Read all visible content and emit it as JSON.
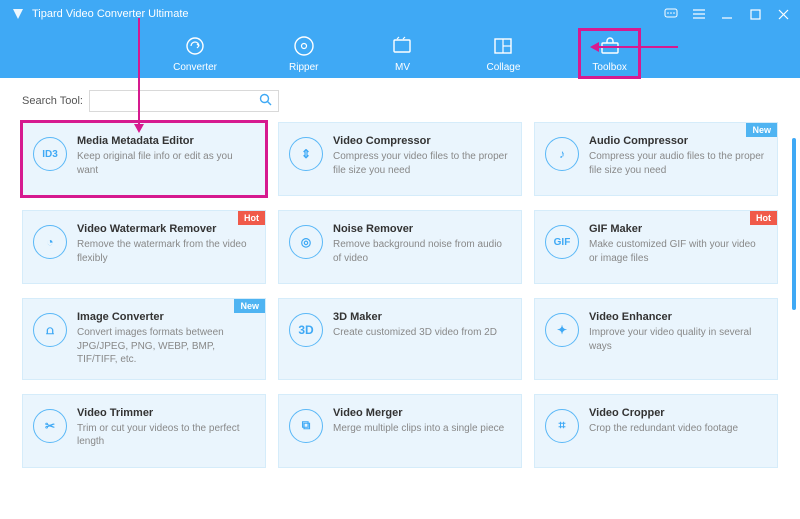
{
  "app": {
    "title": "Tipard Video Converter Ultimate"
  },
  "colors": {
    "header_bg": "#3fa9f5",
    "card_bg": "#eaf5fd",
    "card_border": "#d5ecfa",
    "highlight": "#d61a8f",
    "badge_hot": "#f05a4a",
    "badge_new": "#4fb4f2",
    "icon_blue": "#3fa9f5"
  },
  "tabs": [
    {
      "label": "Converter",
      "icon": "converter"
    },
    {
      "label": "Ripper",
      "icon": "ripper"
    },
    {
      "label": "MV",
      "icon": "mv"
    },
    {
      "label": "Collage",
      "icon": "collage"
    },
    {
      "label": "Toolbox",
      "icon": "toolbox",
      "highlighted": true
    }
  ],
  "search": {
    "label": "Search Tool:",
    "placeholder": "",
    "value": ""
  },
  "badges": {
    "hot": "Hot",
    "new": "New"
  },
  "tools": [
    {
      "title": "Media Metadata Editor",
      "desc": "Keep original file info or edit as you want",
      "icon_text": "ID3",
      "highlighted": true
    },
    {
      "title": "Video Compressor",
      "desc": "Compress your video files to the proper file size you need",
      "icon_text": "⇕"
    },
    {
      "title": "Audio Compressor",
      "desc": "Compress your audio files to the proper file size you need",
      "icon_text": "♪",
      "badge": "new"
    },
    {
      "title": "Video Watermark Remover",
      "desc": "Remove the watermark from the video flexibly",
      "icon_text": "◔",
      "badge": "hot"
    },
    {
      "title": "Noise Remover",
      "desc": "Remove background noise from audio of video",
      "icon_text": "◎"
    },
    {
      "title": "GIF Maker",
      "desc": "Make customized GIF with your video or image files",
      "icon_text": "GIF",
      "badge": "hot"
    },
    {
      "title": "Image Converter",
      "desc": "Convert images formats between JPG/JPEG, PNG, WEBP, BMP, TIF/TIFF, etc.",
      "icon_text": "⩍",
      "badge": "new"
    },
    {
      "title": "3D Maker",
      "desc": "Create customized 3D video from 2D",
      "icon_text": "3D"
    },
    {
      "title": "Video Enhancer",
      "desc": "Improve your video quality in several ways",
      "icon_text": "✦"
    },
    {
      "title": "Video Trimmer",
      "desc": "Trim or cut your videos to the perfect length",
      "icon_text": "✂"
    },
    {
      "title": "Video Merger",
      "desc": "Merge multiple clips into a single piece",
      "icon_text": "⧉"
    },
    {
      "title": "Video Cropper",
      "desc": "Crop the redundant video footage",
      "icon_text": "⌗"
    }
  ]
}
